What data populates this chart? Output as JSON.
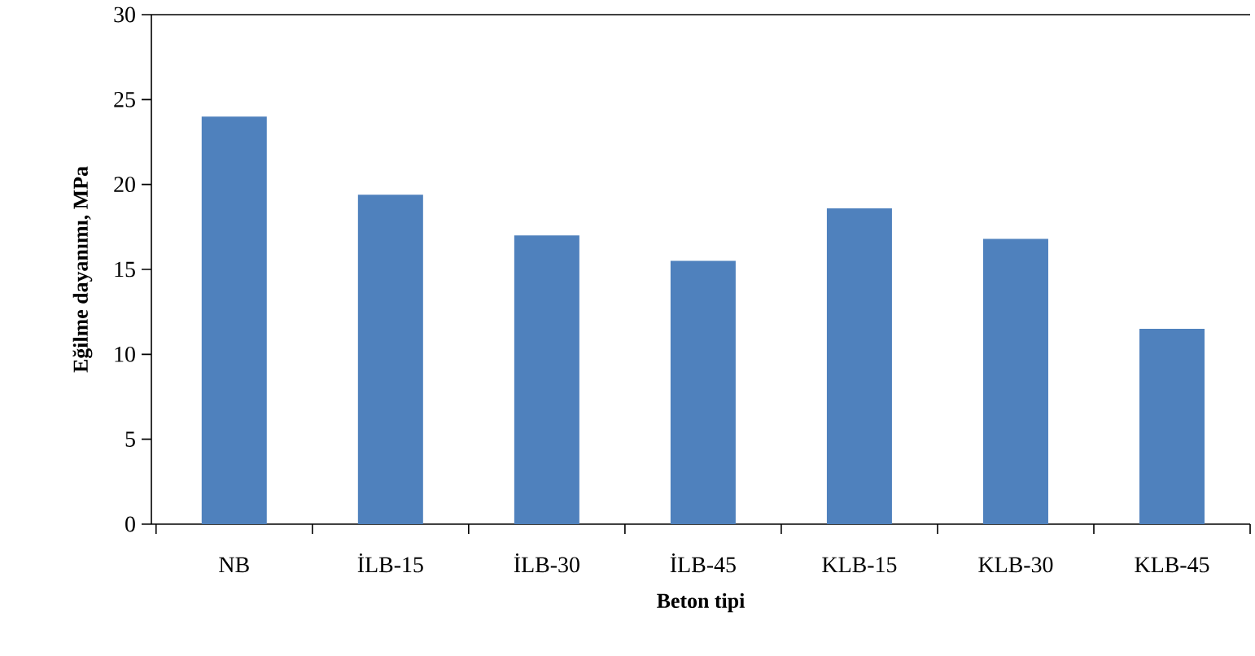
{
  "chart_data": {
    "type": "bar",
    "xlabel": "Beton tipi",
    "ylabel": "Eğilme dayanımı, MPa",
    "categories": [
      "NB",
      "İLB-15",
      "İLB-30",
      "İLB-45",
      "KLB-15",
      "KLB-30",
      "KLB-45"
    ],
    "values": [
      24,
      19.4,
      17,
      15.5,
      18.6,
      16.8,
      11.5
    ],
    "color": "#4f81bd",
    "ylim": [
      0,
      30
    ],
    "yticks": [
      0,
      5,
      10,
      15,
      20,
      25,
      30
    ],
    "grid": false
  }
}
